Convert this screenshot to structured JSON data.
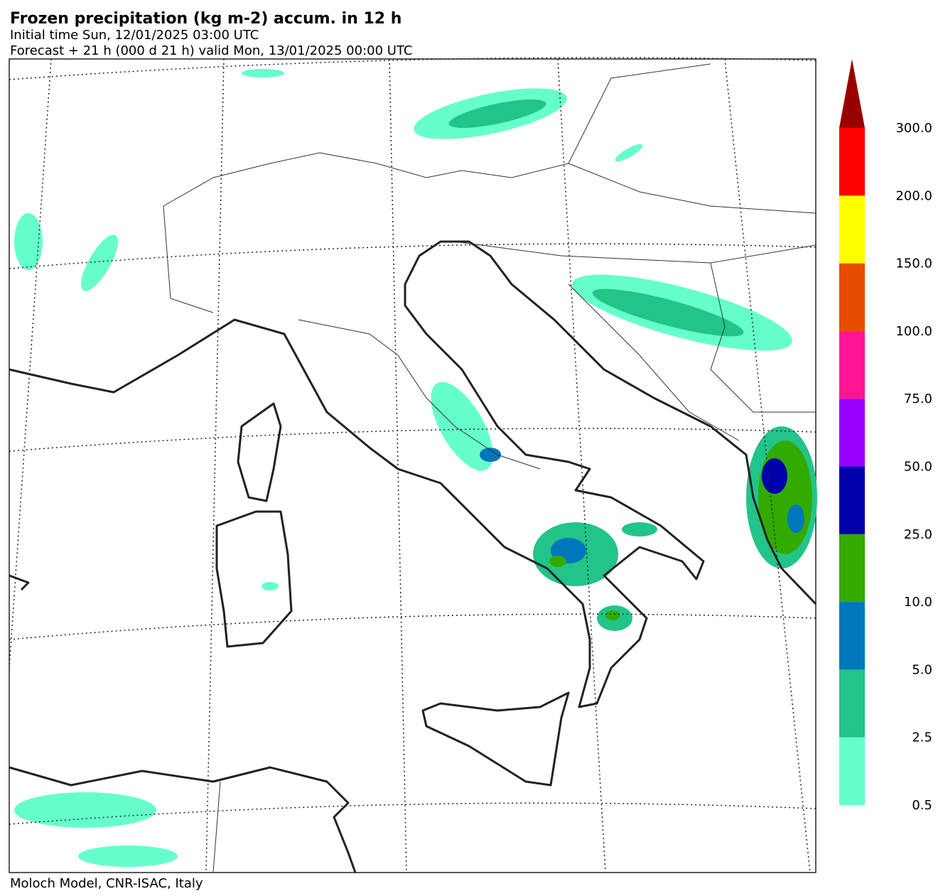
{
  "header": {
    "title": "Frozen precipitation (kg m-2) accum. in 12 h",
    "initial_time": "Initial time  Sun, 12/01/2025  03:00 UTC",
    "forecast": "Forecast  +  21 h  (000 d 21 h)  valid Mon, 13/01/2025 00:00 UTC"
  },
  "legend": {
    "arrow_color": "#990000",
    "levels": [
      {
        "label": "0.5",
        "color": "#66ffcc"
      },
      {
        "label": "2.5",
        "color": "#22c488"
      },
      {
        "label": "5.0",
        "color": "#0077bb"
      },
      {
        "label": "10.0",
        "color": "#33aa00"
      },
      {
        "label": "25.0",
        "color": "#0000aa"
      },
      {
        "label": "50.0",
        "color": "#9900ff"
      },
      {
        "label": "75.0",
        "color": "#ff1493"
      },
      {
        "label": "100.0",
        "color": "#e64c00"
      },
      {
        "label": "150.0",
        "color": "#ffff00"
      },
      {
        "label": "200.0",
        "color": "#ff0000"
      },
      {
        "label": "300.0",
        "color": "#ff0000"
      }
    ]
  },
  "footer": "Moloch Model, CNR-ISAC, Italy"
}
